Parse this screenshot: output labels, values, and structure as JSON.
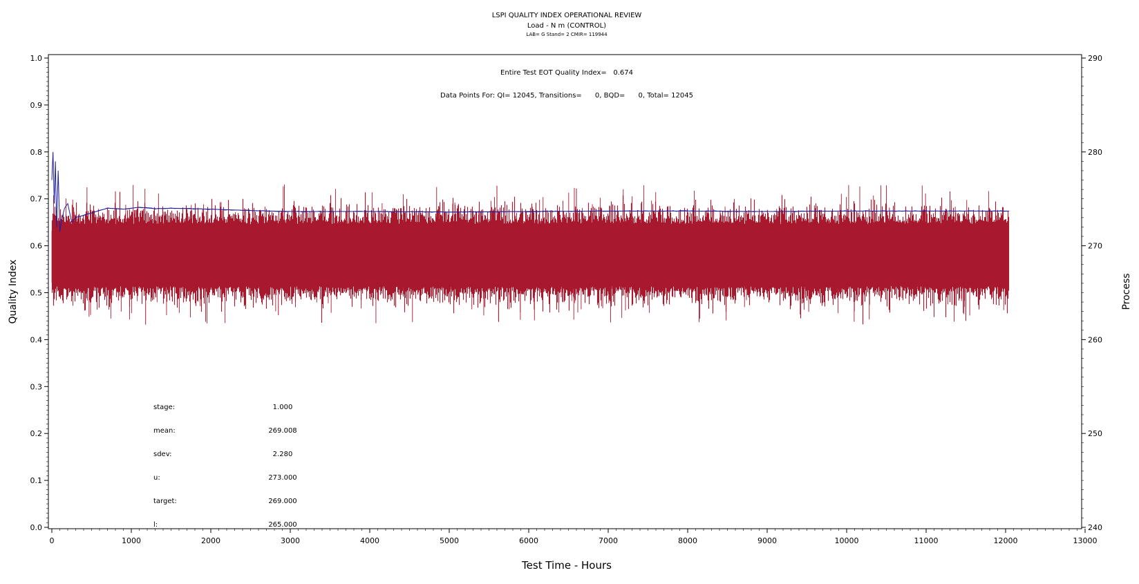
{
  "chart_data": {
    "type": "line",
    "title": "LSPI QUALITY INDEX OPERATIONAL REVIEW",
    "subtitle": "Load - N m (CONTROL)",
    "subtitle2": "LAB= G Stand= 2 CMIR= 119944",
    "xlabel": "Test Time - Hours",
    "ylabel": "Quality Index",
    "y2label": "Process",
    "xlim": [
      0,
      13000
    ],
    "xticks": [
      0,
      1000,
      2000,
      3000,
      4000,
      5000,
      6000,
      7000,
      8000,
      9000,
      10000,
      11000,
      12000,
      13000
    ],
    "ylim": [
      0,
      1
    ],
    "yticks": [
      "0.0",
      "0.1",
      "0.2",
      "0.3",
      "0.4",
      "0.5",
      "0.6",
      "0.7",
      "0.8",
      "0.9",
      "1.0"
    ],
    "y2lim": [
      240,
      290
    ],
    "y2ticks": [
      "240",
      "250",
      "260",
      "270",
      "280",
      "290"
    ],
    "grid": false,
    "annotations": {
      "eot_qi": "Entire Test EOT Quality Index=   0.674",
      "data_points": "Data Points For: QI= 12045, Transitions=      0, BQD=      0, Total= 12045"
    },
    "stats": [
      {
        "label": "stage:",
        "value": "1.000"
      },
      {
        "label": "mean:",
        "value": "269.008"
      },
      {
        "label": "sdev:",
        "value": "2.280"
      },
      {
        "label": "u:",
        "value": "273.000"
      },
      {
        "label": "target:",
        "value": "269.000"
      },
      {
        "label": "l:",
        "value": "265.000"
      }
    ],
    "series": [
      {
        "axis": "right",
        "color": "#a8192e",
        "points": 12045,
        "x_range": [
          0,
          12045
        ],
        "mean": 269.008,
        "sdev": 2.28,
        "max_spikes": [
          [
            5600,
            276.4
          ],
          [
            6600,
            276.1
          ],
          [
            800,
            275.8
          ],
          [
            11300,
            275.8
          ]
        ],
        "min_spikes": [
          [
            1180,
            261.6
          ],
          [
            11500,
            262.0
          ],
          [
            2850,
            262.6
          ],
          [
            11100,
            262.4
          ]
        ]
      },
      {
        "axis": "left",
        "color": "#1f1fa0",
        "x": [
          0,
          15,
          30,
          45,
          60,
          80,
          100,
          130,
          160,
          200,
          250,
          300,
          400,
          500,
          700,
          900,
          1100,
          1300,
          1500,
          2000,
          2500,
          3000,
          4000,
          5000,
          6000,
          7000,
          8000,
          9000,
          10000,
          11000,
          12045
        ],
        "y": [
          0.74,
          0.8,
          0.69,
          0.78,
          0.64,
          0.76,
          0.63,
          0.66,
          0.68,
          0.69,
          0.65,
          0.66,
          0.665,
          0.67,
          0.68,
          0.678,
          0.682,
          0.679,
          0.68,
          0.678,
          0.675,
          0.673,
          0.673,
          0.672,
          0.673,
          0.674,
          0.674,
          0.673,
          0.674,
          0.674,
          0.674
        ]
      }
    ]
  }
}
